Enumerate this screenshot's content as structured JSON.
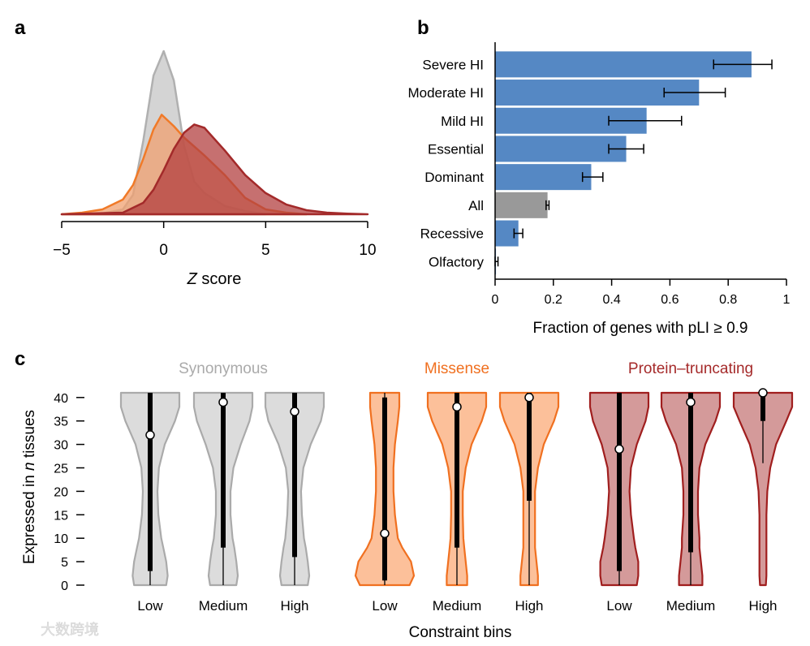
{
  "panel_labels": [
    "a",
    "b",
    "c"
  ],
  "watermark": "大数跨境",
  "chart_data": [
    {
      "type": "area",
      "panel": "a",
      "xlabel_italic": "Z",
      "xlabel_rest": " score",
      "xlim": [
        -5,
        10
      ],
      "xticks": [
        -5,
        0,
        5,
        10
      ],
      "xtick_labels": [
        "−5",
        "0",
        "5",
        "10"
      ],
      "ylabel": "",
      "series": [
        {
          "name": "Synonymous",
          "color": "#b0b0b0",
          "fill": "#d4d4d4",
          "x": [
            -5,
            -3,
            -2,
            -1.5,
            -1,
            -0.5,
            0,
            0.5,
            1,
            1.5,
            2,
            3,
            4,
            5
          ],
          "y": [
            0,
            0.005,
            0.03,
            0.12,
            0.45,
            0.85,
            1,
            0.82,
            0.42,
            0.2,
            0.13,
            0.05,
            0.02,
            0
          ]
        },
        {
          "name": "Missense",
          "color": "#f07a28",
          "fill": "#f0a070",
          "x": [
            -5,
            -4,
            -3,
            -2,
            -1.5,
            -1,
            -0.5,
            -0.1,
            0.5,
            1,
            2,
            3,
            4,
            5,
            6,
            7
          ],
          "y": [
            0,
            0.01,
            0.03,
            0.09,
            0.18,
            0.34,
            0.52,
            0.61,
            0.54,
            0.47,
            0.36,
            0.24,
            0.1,
            0.03,
            0.01,
            0
          ]
        },
        {
          "name": "Protein-truncating",
          "color": "#a32a2a",
          "fill": "#b34040",
          "x": [
            -5,
            -2,
            -1,
            -0.5,
            0,
            0.5,
            1,
            1.5,
            2,
            3,
            4,
            5,
            6,
            7,
            8,
            9,
            10
          ],
          "y": [
            0,
            0.01,
            0.07,
            0.15,
            0.27,
            0.4,
            0.5,
            0.55,
            0.53,
            0.39,
            0.24,
            0.13,
            0.06,
            0.025,
            0.01,
            0.004,
            0
          ]
        }
      ]
    },
    {
      "type": "bar",
      "panel": "b",
      "orientation": "horizontal",
      "categories": [
        "Severe HI",
        "Moderate HI",
        "Mild HI",
        "Essential",
        "Dominant",
        "All",
        "Recessive",
        "Olfactory"
      ],
      "values": [
        0.88,
        0.7,
        0.52,
        0.45,
        0.33,
        0.18,
        0.08,
        0.003
      ],
      "error_low": [
        0.75,
        0.58,
        0.39,
        0.39,
        0.3,
        0.175,
        0.065,
        0.0
      ],
      "error_high": [
        0.95,
        0.79,
        0.64,
        0.51,
        0.37,
        0.185,
        0.095,
        0.01
      ],
      "colors": [
        "#5588c4",
        "#5588c4",
        "#5588c4",
        "#5588c4",
        "#5588c4",
        "#999999",
        "#5588c4",
        "#5588c4"
      ],
      "xlabel": "Fraction of genes with pLI ≥ 0.9",
      "xlim": [
        0,
        1
      ],
      "xticks": [
        0,
        0.2,
        0.4,
        0.6,
        0.8,
        1
      ],
      "xtick_labels": [
        "0",
        "0.2",
        "0.4",
        "0.6",
        "0.8",
        "1"
      ]
    },
    {
      "type": "violin",
      "panel": "c",
      "ylabel_pre": "Expressed in ",
      "ylabel_italic": "n",
      "ylabel_post": " tissues",
      "xlabel": "Constraint bins",
      "ylim": [
        0,
        41
      ],
      "yticks": [
        0,
        5,
        10,
        15,
        20,
        25,
        30,
        35,
        40
      ],
      "density_levels": [
        0,
        2,
        5,
        8,
        10,
        15,
        20,
        25,
        30,
        35,
        38,
        41
      ],
      "groups": [
        {
          "name": "Synonymous",
          "title_color": "#aaaaaa",
          "stroke": "#aaaaaa",
          "fill": "#dcdcdc",
          "bins": [
            {
              "label": "Low",
              "median": 32,
              "q1": 3,
              "q3": 41,
              "min": 0,
              "max": 41,
              "density": [
                0.55,
                0.6,
                0.55,
                0.45,
                0.38,
                0.28,
                0.25,
                0.3,
                0.5,
                0.85,
                1,
                1
              ]
            },
            {
              "label": "Medium",
              "median": 39,
              "q1": 8,
              "q3": 41,
              "min": 0,
              "max": 41,
              "density": [
                0.45,
                0.5,
                0.45,
                0.38,
                0.32,
                0.25,
                0.25,
                0.35,
                0.6,
                0.9,
                1,
                1
              ]
            },
            {
              "label": "High",
              "median": 37,
              "q1": 6,
              "q3": 41,
              "min": 0,
              "max": 41,
              "density": [
                0.45,
                0.5,
                0.45,
                0.38,
                0.32,
                0.25,
                0.22,
                0.3,
                0.55,
                0.9,
                1,
                1
              ]
            }
          ]
        },
        {
          "name": "Missense",
          "title_color": "#f07020",
          "stroke": "#f07020",
          "fill": "#fcc09a",
          "bins": [
            {
              "label": "Low",
              "median": 11,
              "q1": 1,
              "q3": 40,
              "min": 0,
              "max": 41,
              "density": [
                0.85,
                1,
                0.9,
                0.6,
                0.45,
                0.35,
                0.3,
                0.3,
                0.35,
                0.45,
                0.5,
                0.5
              ]
            },
            {
              "label": "Medium",
              "median": 38,
              "q1": 8,
              "q3": 41,
              "min": 0,
              "max": 41,
              "density": [
                0.35,
                0.35,
                0.3,
                0.25,
                0.22,
                0.2,
                0.2,
                0.3,
                0.5,
                0.85,
                1,
                1
              ]
            },
            {
              "label": "High",
              "median": 40,
              "q1": 18,
              "q3": 41,
              "min": 0,
              "max": 41,
              "density": [
                0.3,
                0.3,
                0.25,
                0.2,
                0.2,
                0.2,
                0.2,
                0.3,
                0.5,
                0.85,
                1,
                1
              ]
            }
          ]
        },
        {
          "name": "Protein–truncating",
          "title_color": "#a52a2a",
          "stroke": "#a01e1e",
          "fill": "#d49a9a",
          "bins": [
            {
              "label": "Low",
              "median": 29,
              "q1": 3,
              "q3": 41,
              "min": 0,
              "max": 41,
              "density": [
                0.6,
                0.65,
                0.65,
                0.55,
                0.5,
                0.4,
                0.35,
                0.4,
                0.6,
                0.9,
                1,
                1
              ]
            },
            {
              "label": "Medium",
              "median": 39,
              "q1": 7,
              "q3": 41,
              "min": 0,
              "max": 41,
              "density": [
                0.4,
                0.4,
                0.35,
                0.3,
                0.3,
                0.25,
                0.25,
                0.3,
                0.5,
                0.85,
                1,
                1
              ]
            },
            {
              "label": "High",
              "median": 41,
              "q1": 35,
              "q3": 41,
              "min": 26,
              "max": 41,
              "density": [
                0.1,
                0.12,
                0.12,
                0.12,
                0.12,
                0.12,
                0.15,
                0.25,
                0.45,
                0.8,
                1,
                1
              ]
            }
          ]
        }
      ]
    }
  ]
}
